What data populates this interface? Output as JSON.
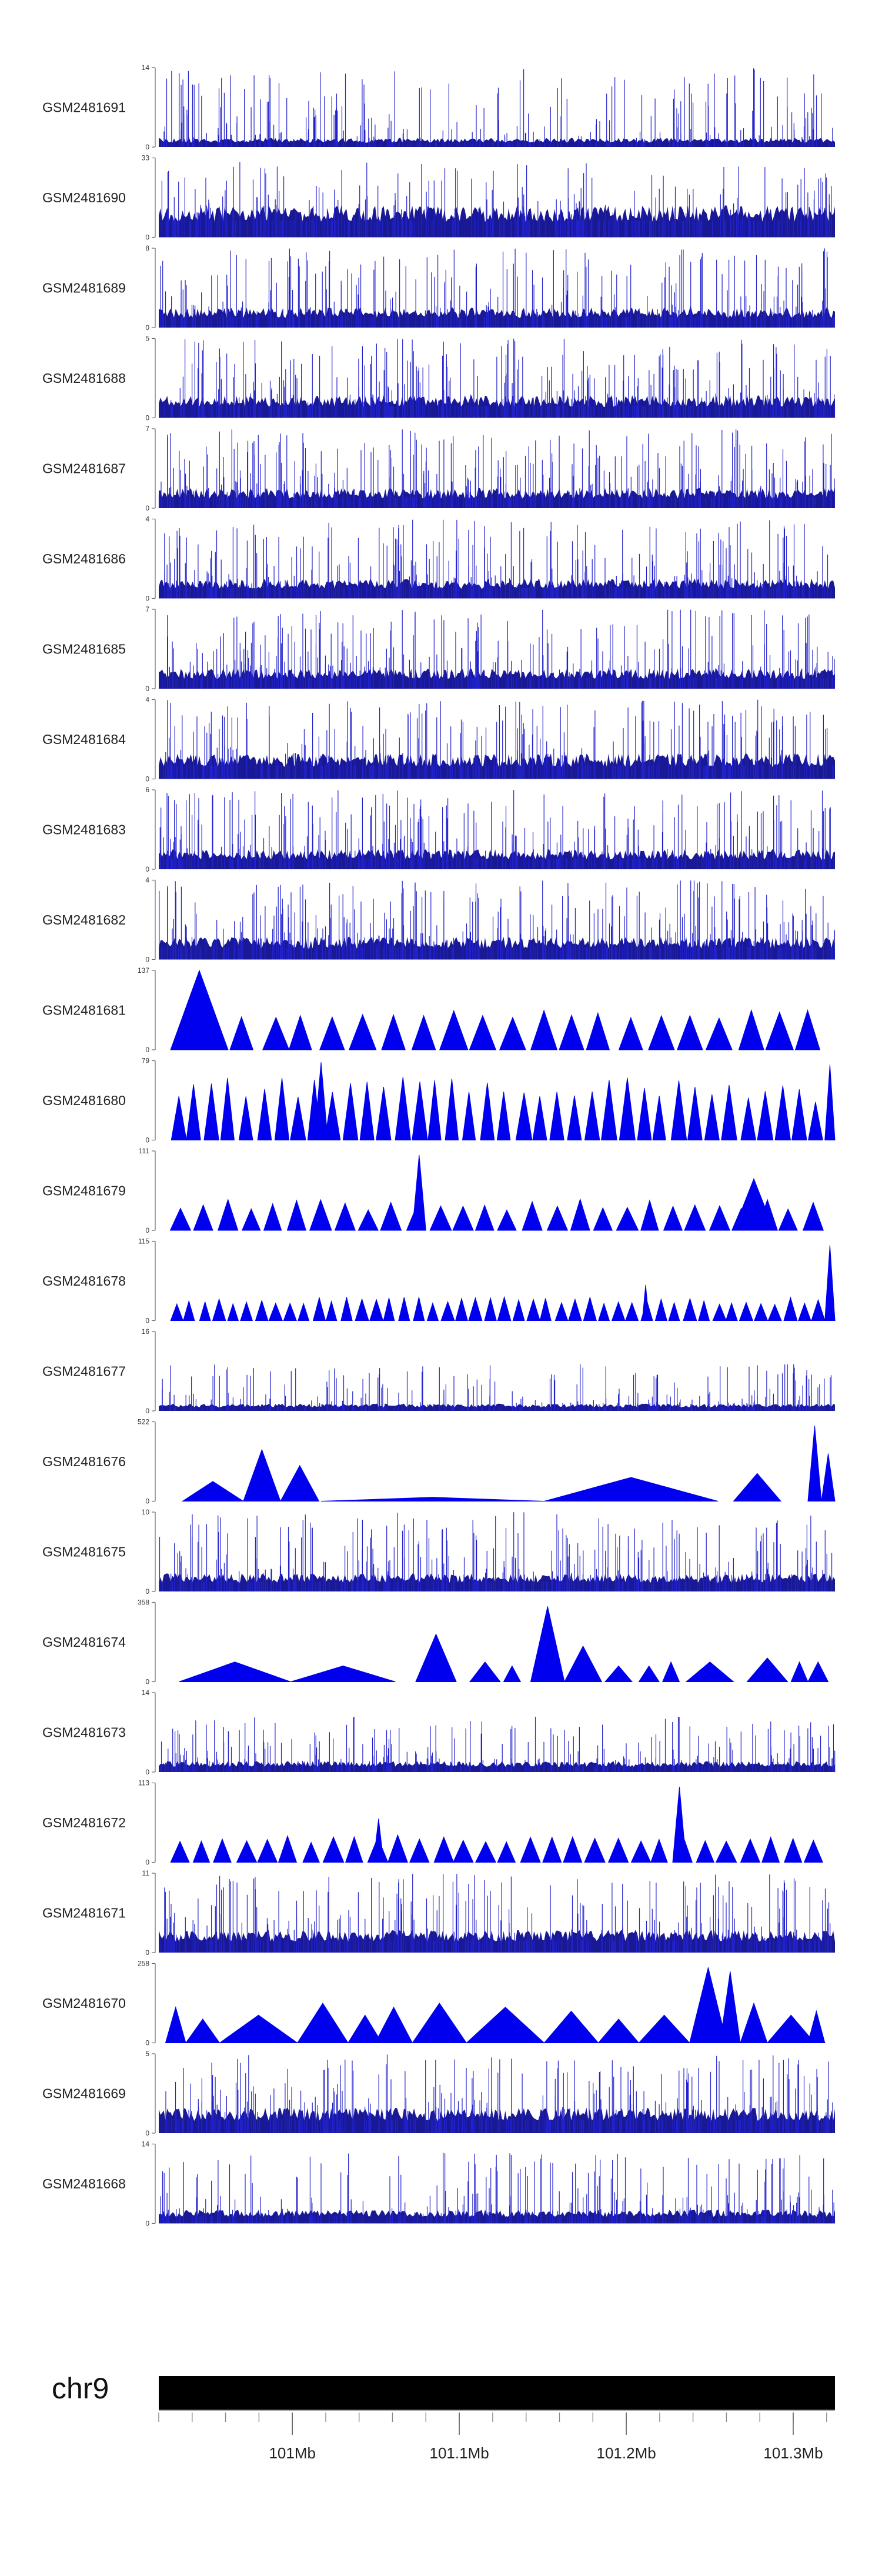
{
  "chart_data": {
    "type": "area",
    "title": "",
    "chromosome": "chr9",
    "x_range_mb": [
      100.92,
      101.325
    ],
    "x_ticks": [
      {
        "value": 101.0,
        "label": "101Mb"
      },
      {
        "value": 101.1,
        "label": "101.1Mb"
      },
      {
        "value": 101.2,
        "label": "101.2Mb"
      },
      {
        "value": 101.3,
        "label": "101.3Mb"
      }
    ],
    "minor_tick_step_mb": 0.02,
    "color": "#0000ee",
    "tracks": [
      {
        "id": "track-1",
        "name": "GSM2481691",
        "ymin": 0,
        "ymax": 14,
        "style": "dense",
        "seed": 11,
        "base": 0.1,
        "peak_max": 1.0,
        "peak_dens": 0.4
      },
      {
        "id": "track-2",
        "name": "GSM2481690",
        "ymin": 0,
        "ymax": 33,
        "style": "dense",
        "seed": 12,
        "base": 0.35,
        "peak_max": 0.95,
        "peak_dens": 0.55
      },
      {
        "id": "track-3",
        "name": "GSM2481689",
        "ymin": 0,
        "ymax": 8,
        "style": "dense",
        "seed": 13,
        "base": 0.22,
        "peak_max": 1.0,
        "peak_dens": 0.55
      },
      {
        "id": "track-4",
        "name": "GSM2481688",
        "ymin": 0,
        "ymax": 5,
        "style": "dense",
        "seed": 14,
        "base": 0.25,
        "peak_max": 1.0,
        "peak_dens": 0.6
      },
      {
        "id": "track-5",
        "name": "GSM2481687",
        "ymin": 0,
        "ymax": 7,
        "style": "dense",
        "seed": 15,
        "base": 0.22,
        "peak_max": 1.0,
        "peak_dens": 0.6
      },
      {
        "id": "track-6",
        "name": "GSM2481686",
        "ymin": 0,
        "ymax": 4,
        "style": "dense",
        "seed": 16,
        "base": 0.22,
        "peak_max": 1.0,
        "peak_dens": 0.6
      },
      {
        "id": "track-7",
        "name": "GSM2481685",
        "ymin": 0,
        "ymax": 7,
        "style": "dense",
        "seed": 17,
        "base": 0.22,
        "peak_max": 1.0,
        "peak_dens": 0.55
      },
      {
        "id": "track-8",
        "name": "GSM2481684",
        "ymin": 0,
        "ymax": 4,
        "style": "dense",
        "seed": 18,
        "base": 0.28,
        "peak_max": 1.0,
        "peak_dens": 0.6
      },
      {
        "id": "track-9",
        "name": "GSM2481683",
        "ymin": 0,
        "ymax": 6,
        "style": "dense",
        "seed": 19,
        "base": 0.22,
        "peak_max": 1.0,
        "peak_dens": 0.55
      },
      {
        "id": "track-10",
        "name": "GSM2481682",
        "ymin": 0,
        "ymax": 4,
        "style": "dense",
        "seed": 20,
        "base": 0.25,
        "peak_max": 1.0,
        "peak_dens": 0.6
      },
      {
        "id": "track-11",
        "name": "GSM2481681",
        "ymin": 0,
        "ymax": 137,
        "style": "triangles",
        "seed": 21,
        "count": 22,
        "peak_min": 0.4,
        "peak_max": 0.5,
        "big": [
          {
            "at": 0.06,
            "h": 1.0,
            "w": 0.085
          }
        ]
      },
      {
        "id": "track-12",
        "name": "GSM2481680",
        "ymin": 0,
        "ymax": 79,
        "style": "triangles",
        "seed": 22,
        "count": 38,
        "peak_min": 0.45,
        "peak_max": 0.8,
        "big": [
          {
            "at": 0.24,
            "h": 0.98,
            "w": 0.02
          },
          {
            "at": 0.995,
            "h": 0.95,
            "w": 0.02
          }
        ]
      },
      {
        "id": "track-13",
        "name": "GSM2481679",
        "ymin": 0,
        "ymax": 111,
        "style": "triangles",
        "seed": 23,
        "count": 28,
        "peak_min": 0.25,
        "peak_max": 0.4,
        "big": [
          {
            "at": 0.385,
            "h": 0.95,
            "w": 0.02
          },
          {
            "at": 0.88,
            "h": 0.65,
            "w": 0.06
          }
        ]
      },
      {
        "id": "track-14",
        "name": "GSM2481678",
        "ymin": 0,
        "ymax": 115,
        "style": "triangles",
        "seed": 24,
        "count": 46,
        "peak_min": 0.2,
        "peak_max": 0.3,
        "big": [
          {
            "at": 0.995,
            "h": 0.95,
            "w": 0.02
          },
          {
            "at": 0.72,
            "h": 0.45,
            "w": 0.01
          }
        ]
      },
      {
        "id": "track-15",
        "name": "GSM2481677",
        "ymin": 0,
        "ymax": 16,
        "style": "dense",
        "seed": 25,
        "base": 0.08,
        "peak_max": 0.6,
        "peak_dens": 0.35
      },
      {
        "id": "track-16",
        "name": "GSM2481676",
        "ymin": 0,
        "ymax": 522,
        "style": "list",
        "peaks": [
          [
            0.035,
            0.125,
            0.25
          ],
          [
            0.125,
            0.18,
            0.65
          ],
          [
            0.18,
            0.237,
            0.45
          ],
          [
            0.24,
            0.57,
            0.05
          ],
          [
            0.57,
            0.827,
            0.3
          ],
          [
            0.85,
            0.92,
            0.35
          ],
          [
            0.96,
            0.98,
            0.95
          ],
          [
            0.98,
            1.0,
            0.6
          ]
        ]
      },
      {
        "id": "track-17",
        "name": "GSM2481675",
        "ymin": 0,
        "ymax": 10,
        "style": "dense",
        "seed": 27,
        "base": 0.2,
        "peak_max": 1.0,
        "peak_dens": 0.55
      },
      {
        "id": "track-18",
        "name": "GSM2481674",
        "ymin": 0,
        "ymax": 358,
        "style": "list",
        "peaks": [
          [
            0.03,
            0.195,
            0.25
          ],
          [
            0.195,
            0.35,
            0.2
          ],
          [
            0.38,
            0.44,
            0.6
          ],
          [
            0.46,
            0.505,
            0.25
          ],
          [
            0.51,
            0.535,
            0.2
          ],
          [
            0.55,
            0.6,
            0.95
          ],
          [
            0.6,
            0.655,
            0.45
          ],
          [
            0.66,
            0.7,
            0.2
          ],
          [
            0.71,
            0.74,
            0.2
          ],
          [
            0.745,
            0.77,
            0.25
          ],
          [
            0.78,
            0.85,
            0.25
          ],
          [
            0.87,
            0.93,
            0.3
          ],
          [
            0.935,
            0.96,
            0.25
          ],
          [
            0.96,
            0.99,
            0.25
          ]
        ]
      },
      {
        "id": "track-19",
        "name": "GSM2481673",
        "ymin": 0,
        "ymax": 14,
        "style": "dense",
        "seed": 29,
        "base": 0.12,
        "peak_max": 0.7,
        "peak_dens": 0.45
      },
      {
        "id": "track-20",
        "name": "GSM2481672",
        "ymin": 0,
        "ymax": 113,
        "style": "triangles",
        "seed": 30,
        "count": 30,
        "peak_min": 0.25,
        "peak_max": 0.35,
        "big": [
          {
            "at": 0.325,
            "h": 0.55,
            "w": 0.015
          },
          {
            "at": 0.77,
            "h": 0.95,
            "w": 0.02
          }
        ]
      },
      {
        "id": "track-21",
        "name": "GSM2481671",
        "ymin": 0,
        "ymax": 11,
        "style": "dense",
        "seed": 31,
        "base": 0.25,
        "peak_max": 1.0,
        "peak_dens": 0.6
      },
      {
        "id": "track-22",
        "name": "GSM2481670",
        "ymin": 0,
        "ymax": 258,
        "style": "list",
        "peaks": [
          [
            0.01,
            0.04,
            0.45
          ],
          [
            0.04,
            0.09,
            0.3
          ],
          [
            0.09,
            0.205,
            0.35
          ],
          [
            0.205,
            0.28,
            0.5
          ],
          [
            0.28,
            0.33,
            0.35
          ],
          [
            0.32,
            0.375,
            0.45
          ],
          [
            0.375,
            0.455,
            0.5
          ],
          [
            0.455,
            0.57,
            0.45
          ],
          [
            0.57,
            0.65,
            0.4
          ],
          [
            0.65,
            0.71,
            0.3
          ],
          [
            0.71,
            0.785,
            0.35
          ],
          [
            0.785,
            0.84,
            0.95
          ],
          [
            0.8,
            0.82,
            0.55
          ],
          [
            0.83,
            0.86,
            0.9
          ],
          [
            0.86,
            0.9,
            0.5
          ],
          [
            0.9,
            0.97,
            0.35
          ],
          [
            0.96,
            0.985,
            0.4
          ]
        ]
      },
      {
        "id": "track-23",
        "name": "GSM2481669",
        "ymin": 0,
        "ymax": 5,
        "style": "dense",
        "seed": 33,
        "base": 0.28,
        "peak_max": 1.0,
        "peak_dens": 0.6
      },
      {
        "id": "track-24",
        "name": "GSM2481668",
        "ymin": 0,
        "ymax": 14,
        "style": "dense",
        "seed": 34,
        "base": 0.15,
        "peak_max": 0.9,
        "peak_dens": 0.5
      }
    ]
  }
}
